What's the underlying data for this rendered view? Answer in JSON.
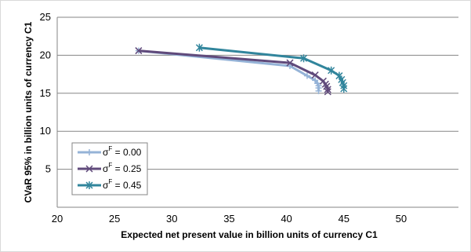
{
  "chart_data": {
    "type": "line",
    "xlabel": "Expected net present value in billion units of currency C1",
    "ylabel": "CVaR 95% in billion units of currency C1",
    "xlim": [
      20,
      55
    ],
    "ylim": [
      0,
      25
    ],
    "xticks": [
      20,
      25,
      30,
      35,
      40,
      45,
      50
    ],
    "yticks": [
      5,
      10,
      15,
      20,
      25
    ],
    "grid": "horizontal",
    "legend_position": "bottom-left",
    "series": [
      {
        "name": "σF = 0.00",
        "name_base": "σ",
        "name_sup": "F",
        "name_rest": " = 0.00",
        "color": "#95b3d7",
        "marker": "plus",
        "x": [
          27.1,
          40.3,
          41.8,
          42.5,
          42.7,
          42.8,
          42.8,
          42.8
        ],
        "y": [
          20.6,
          18.6,
          17.3,
          16.7,
          16.3,
          16.0,
          15.7,
          15.3
        ]
      },
      {
        "name": "σF = 0.25",
        "name_base": "σ",
        "name_sup": "F",
        "name_rest": " = 0.25",
        "color": "#604a7b",
        "marker": "x",
        "x": [
          27.1,
          40.3,
          42.5,
          43.2,
          43.4,
          43.5,
          43.6,
          43.6
        ],
        "y": [
          20.6,
          19.0,
          17.4,
          16.6,
          16.2,
          15.9,
          15.5,
          15.2
        ]
      },
      {
        "name": "σF = 0.45",
        "name_base": "σ",
        "name_sup": "F",
        "name_rest": " = 0.45",
        "color": "#31859c",
        "marker": "star",
        "x": [
          32.4,
          41.5,
          43.9,
          44.6,
          44.8,
          44.9,
          45.0,
          45.0
        ],
        "y": [
          21.0,
          19.6,
          18.0,
          17.3,
          16.8,
          16.4,
          16.0,
          15.6
        ]
      }
    ]
  }
}
